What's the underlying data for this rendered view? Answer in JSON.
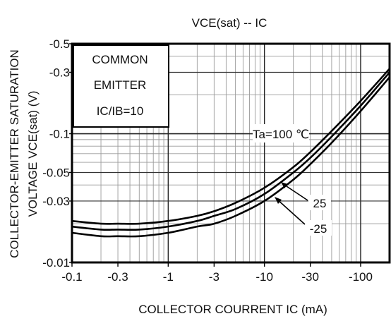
{
  "chart_data": {
    "type": "line",
    "title": "VCE(sat) -- IC",
    "xlabel": "COLLECTOR COURRENT IC (mA)",
    "ylabel_line1": "COLLECTOR-EMITTER SATURATION",
    "ylabel_line2": "VOLTAGE VCE(sat) (V)",
    "x_scale": "log",
    "y_scale": "log",
    "xlim": [
      -0.1,
      -200
    ],
    "ylim": [
      -0.01,
      -0.5
    ],
    "x_ticks": [
      {
        "value": -0.1,
        "label": "-0.1"
      },
      {
        "value": -0.3,
        "label": "-0.3"
      },
      {
        "value": -1,
        "label": "-1"
      },
      {
        "value": -3,
        "label": "-3"
      },
      {
        "value": -10,
        "label": "-10"
      },
      {
        "value": -30,
        "label": "-30"
      },
      {
        "value": -100,
        "label": "-100"
      }
    ],
    "y_ticks": [
      {
        "value": -0.5,
        "label": "-0.5"
      },
      {
        "value": -0.3,
        "label": "-0.3"
      },
      {
        "value": -0.1,
        "label": "-0.1"
      },
      {
        "value": -0.05,
        "label": "-0.05"
      },
      {
        "value": -0.03,
        "label": "-0.03"
      },
      {
        "value": -0.01,
        "label": "-0.01"
      }
    ],
    "grid": true,
    "condition_box": {
      "line1": "COMMON",
      "line2": "EMITTER",
      "line3": "IC/IB=10"
    },
    "series": [
      {
        "name": "Ta=100 ℃",
        "x": [
          -0.1,
          -0.2,
          -0.3,
          -0.5,
          -1,
          -2,
          -3,
          -5,
          -10,
          -20,
          -30,
          -50,
          -100,
          -200
        ],
        "y": [
          -0.021,
          -0.02,
          -0.02,
          -0.02,
          -0.021,
          -0.023,
          -0.025,
          -0.029,
          -0.038,
          -0.055,
          -0.072,
          -0.105,
          -0.18,
          -0.32
        ]
      },
      {
        "name": "25",
        "x": [
          -0.1,
          -0.2,
          -0.3,
          -0.5,
          -1,
          -2,
          -3,
          -5,
          -10,
          -20,
          -30,
          -50,
          -100,
          -200
        ],
        "y": [
          -0.019,
          -0.018,
          -0.018,
          -0.018,
          -0.019,
          -0.021,
          -0.023,
          -0.026,
          -0.034,
          -0.05,
          -0.065,
          -0.095,
          -0.165,
          -0.3
        ]
      },
      {
        "name": "-25",
        "x": [
          -0.1,
          -0.2,
          -0.3,
          -0.5,
          -1,
          -2,
          -3,
          -5,
          -10,
          -20,
          -30,
          -50,
          -100,
          -200
        ],
        "y": [
          -0.017,
          -0.016,
          -0.016,
          -0.016,
          -0.017,
          -0.019,
          -0.02,
          -0.023,
          -0.03,
          -0.044,
          -0.058,
          -0.085,
          -0.15,
          -0.275
        ]
      }
    ]
  }
}
